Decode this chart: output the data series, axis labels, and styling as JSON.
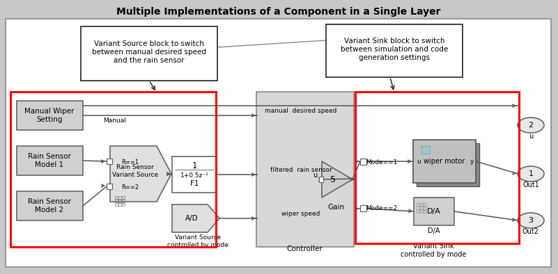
{
  "title": "Multiple Implementations of a Component in a Single Layer",
  "callout1": "Variant Source block to switch\nbetween manual desired speed\nand the rain sensor",
  "callout2": "Variant Sink block to switch\nbetween simulation and code\ngeneration settings",
  "lbl_mw": "Manual Wiper\nSetting",
  "lbl_rs1": "Rain Sensor\nModel 1",
  "lbl_rs2": "Rain Sensor\nModel 2",
  "lbl_rsv": "Rain Sensor\nVariant Source",
  "lbl_r1": "R==1",
  "lbl_r2": "R==2",
  "lbl_f1num": "1",
  "lbl_f1den": "1+0.5z⁻¹",
  "lbl_f1": "F1",
  "lbl_ad": "A/D",
  "lbl_vs_mode": "Variant Source\ncontrolled by mode",
  "lbl_controller": "Controller",
  "lbl_gain_val": "5",
  "lbl_gain": "Gain",
  "lbl_mode1": "Mode==1",
  "lbl_mode2": "Mode==2",
  "lbl_wm": "wiper motor",
  "lbl_da": "D/A",
  "lbl_da2": "D/A",
  "lbl_vsnk_mode": "Variant Sink\ncontrolled by mode",
  "lbl_manual": "Manual",
  "lbl_mds": "manual  desired speed",
  "lbl_frs": "filtered  rain sensor",
  "lbl_u": "u",
  "lbl_ws": "wiper speed",
  "lbl_port2_n": "2",
  "lbl_port2_l": "u",
  "lbl_port1_n": "1",
  "lbl_port1_l": "Out1",
  "lbl_port3_n": "3",
  "lbl_port3_l": "Out2"
}
